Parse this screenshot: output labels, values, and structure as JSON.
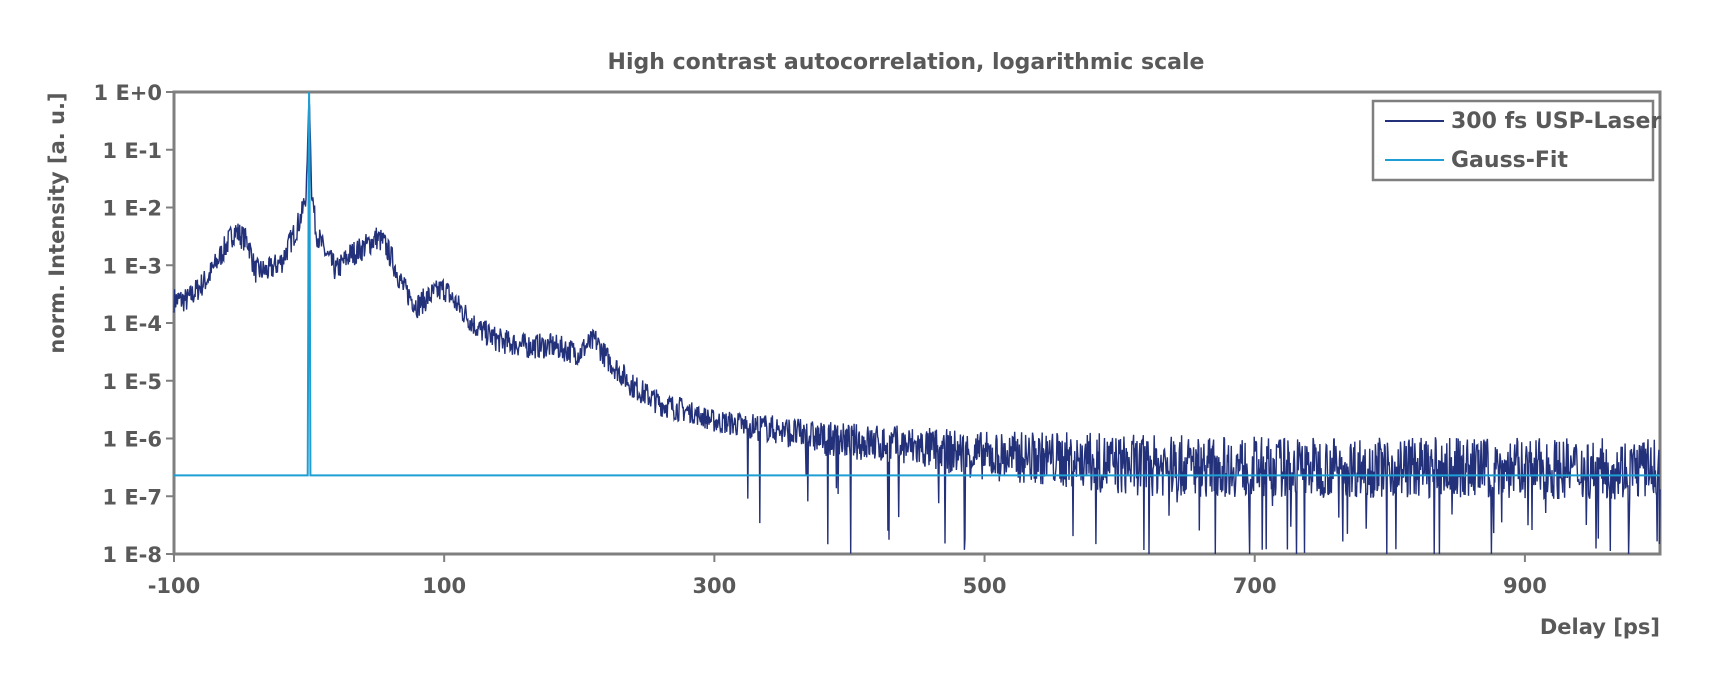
{
  "chart_data": {
    "type": "line",
    "title": "High contrast autocorrelation, logarithmic scale",
    "xlabel": "Delay [ps]",
    "ylabel": "norm. Intensity [a. u.]",
    "x_ticks": [
      -100,
      100,
      300,
      500,
      700,
      900
    ],
    "x_tick_labels": [
      "-100",
      "100",
      "300",
      "500",
      "700",
      "900"
    ],
    "xlim": [
      -100,
      1000
    ],
    "y_scale": "log",
    "ylim": [
      1e-08,
      1
    ],
    "y_ticks": [
      1,
      0.1,
      0.01,
      0.001,
      0.0001,
      1e-05,
      1e-06,
      1e-07,
      1e-08
    ],
    "y_tick_labels": [
      "1 E+0",
      "1 E-1",
      "1 E-2",
      "1 E-3",
      "1 E-4",
      "1 E-5",
      "1 E-6",
      "1 E-7",
      "1 E-8"
    ],
    "grid": false,
    "legend_position": "top-right",
    "series": [
      {
        "name": "300 fs USP-Laser",
        "color": "#23307a",
        "noise_decades": 0.22,
        "x": [
          -100,
          -90,
          -75,
          -60,
          -55,
          -45,
          -40,
          -30,
          -20,
          -10,
          -5,
          -2,
          0,
          2,
          5,
          10,
          20,
          30,
          40,
          50,
          55,
          60,
          70,
          80,
          90,
          100,
          110,
          125,
          140,
          160,
          180,
          200,
          205,
          212,
          220,
          240,
          260,
          280,
          300,
          340,
          380,
          450,
          500,
          550,
          600,
          700,
          800,
          900,
          1000
        ],
        "y": [
          0.00025,
          0.00025,
          0.0006,
          0.0025,
          0.004,
          0.0025,
          0.0008,
          0.0008,
          0.0012,
          0.004,
          0.008,
          0.02,
          1,
          0.02,
          0.004,
          0.002,
          0.0008,
          0.0015,
          0.002,
          0.003,
          0.0025,
          0.0015,
          0.0004,
          0.0002,
          0.0003,
          0.0004,
          0.0002,
          8e-05,
          5e-05,
          4e-05,
          4e-05,
          3e-05,
          4e-05,
          5e-05,
          2.5e-05,
          8e-06,
          4e-06,
          3e-06,
          2e-06,
          1.5e-06,
          1e-06,
          7e-07,
          5e-07,
          4.5e-07,
          3.5e-07,
          3.2e-07,
          3.2e-07,
          3e-07,
          3e-07
        ]
      },
      {
        "name": "Gauss-Fit",
        "color": "#1e9fd4",
        "x": [
          -100,
          -1,
          -0.6,
          -0.3,
          0,
          0.3,
          0.6,
          1,
          1000
        ],
        "y": [
          2.3e-07,
          2.3e-07,
          0.0003,
          0.1,
          1,
          0.1,
          0.0003,
          2.3e-07,
          2.3e-07
        ]
      }
    ]
  }
}
